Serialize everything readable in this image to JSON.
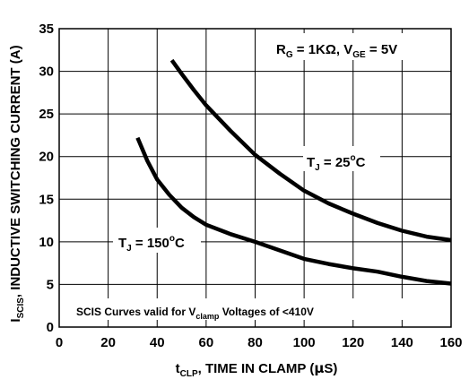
{
  "chart_data": {
    "type": "line",
    "xlim": [
      0,
      160
    ],
    "ylim": [
      0,
      35
    ],
    "x_ticks": [
      "0",
      "20",
      "40",
      "60",
      "80",
      "100",
      "120",
      "140",
      "160"
    ],
    "y_ticks": [
      "0",
      "5",
      "10",
      "15",
      "20",
      "25",
      "30",
      "35"
    ],
    "grid": true,
    "xlabel": {
      "pre": "t",
      "sub": "CLP",
      "post": ", TIME IN CLAMP (",
      "mu": "µ",
      "end": "S)"
    },
    "ylabel": {
      "pre": "I",
      "sub": "SCIS",
      "post": ", INDUCTIVE SWITCHING CURRENT (A)"
    },
    "series": [
      {
        "name": "TJ = 25°C",
        "x": [
          46,
          50,
          55,
          60,
          70,
          80,
          90,
          100,
          110,
          120,
          130,
          140,
          150,
          160
        ],
        "y": [
          31.3,
          29.7,
          27.8,
          26.0,
          23.0,
          20.2,
          18.0,
          16.0,
          14.5,
          13.3,
          12.2,
          11.3,
          10.6,
          10.2
        ]
      },
      {
        "name": "TJ = 150°C",
        "x": [
          32,
          36,
          40,
          45,
          50,
          55,
          60,
          70,
          80,
          90,
          100,
          110,
          120,
          130,
          140,
          150,
          160
        ],
        "y": [
          22.2,
          19.5,
          17.3,
          15.5,
          14.0,
          12.9,
          12.0,
          10.9,
          10.0,
          9.0,
          8.0,
          7.4,
          6.9,
          6.5,
          5.9,
          5.4,
          5.1
        ]
      }
    ],
    "annotations": {
      "conditions": {
        "r": "R",
        "r_sub": "G",
        "r_val": " = 1KΩ, V",
        "v_sub": "GE",
        "v_val": " = 5V"
      },
      "label_25": {
        "pre": "T",
        "sub": "J",
        "mid": " = 25",
        "sup": "o",
        "post": "C"
      },
      "label_150": {
        "pre": "T",
        "sub": "J",
        "mid": " = 150",
        "sup": "o",
        "post": "C"
      },
      "note": {
        "pre": "SCIS Curves valid for V",
        "sub": "clamp",
        "post": " Voltages of <410V"
      }
    }
  }
}
